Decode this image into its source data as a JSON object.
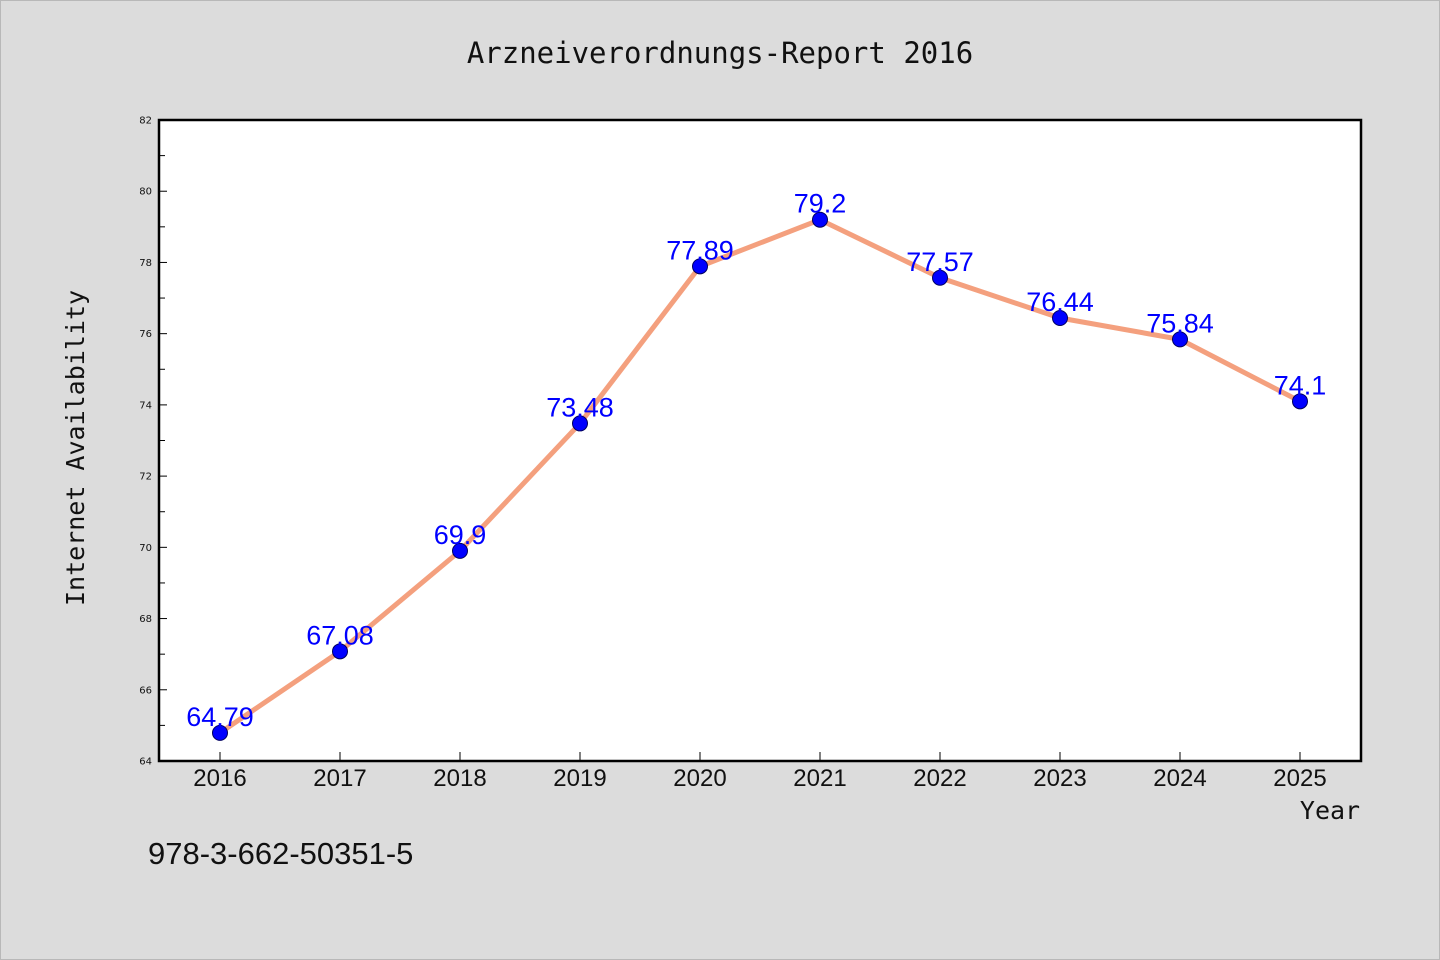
{
  "chart_data": {
    "type": "line",
    "title": "Arzneiverordnungs-Report 2016",
    "xlabel": "Year",
    "ylabel": "Internet Availability",
    "x": [
      "2016",
      "2017",
      "2018",
      "2019",
      "2020",
      "2021",
      "2022",
      "2023",
      "2024",
      "2025"
    ],
    "series": [
      {
        "values": [
          64.79,
          67.08,
          69.9,
          73.48,
          77.89,
          79.2,
          77.57,
          76.44,
          75.84,
          74.1
        ]
      }
    ],
    "data_labels": [
      "64.79",
      "67.08",
      "69.9",
      "73.48",
      "77.89",
      "79.2",
      "77.57",
      "76.44",
      "75.84",
      "74.1"
    ],
    "ylim": [
      64,
      82
    ],
    "yticks": [
      "64",
      "66",
      "68",
      "70",
      "72",
      "74",
      "76",
      "78",
      "80",
      "82"
    ],
    "grid": false,
    "legend": "none",
    "line_color": "#f4a07e",
    "marker_color": "#0000ff",
    "label_color": "#0000ff"
  },
  "footer_text": "978-3-662-50351-5"
}
